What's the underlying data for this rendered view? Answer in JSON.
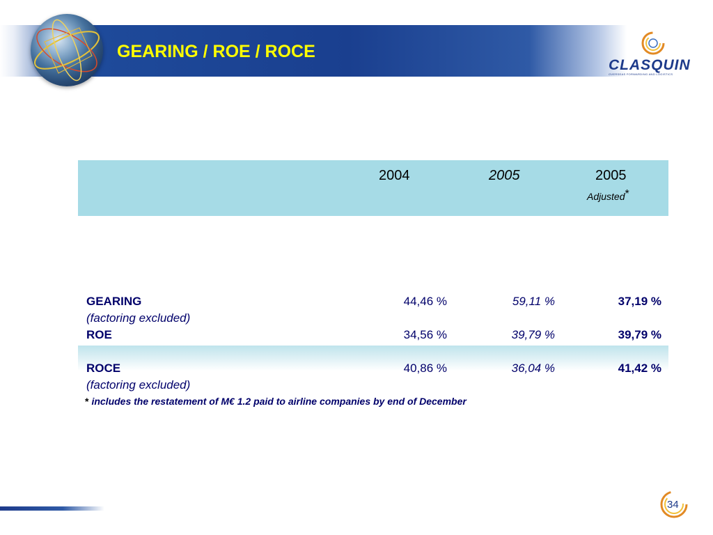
{
  "header": {
    "title": "GEARING / ROE / ROCE"
  },
  "logo": {
    "name": "CLASQUIN",
    "tagline": "OVERSEAS FORWARDING AND LOGISTICS"
  },
  "table": {
    "columns": [
      "2004",
      "2005",
      "2005"
    ],
    "adjusted_label": "Adjusted",
    "adjusted_marker": "*",
    "rows": [
      {
        "label": "GEARING",
        "sub": "(factoring excluded)",
        "values": [
          "44,46 %",
          "59,11 %",
          "37,19 %"
        ]
      },
      {
        "label": "ROE",
        "sub": "",
        "values": [
          "34,56 %",
          "39,79 %",
          "39,79 %"
        ]
      },
      {
        "label": "ROCE",
        "sub": "(factoring excluded)",
        "values": [
          "40,86 %",
          "36,04 %",
          "41,42 %"
        ]
      }
    ]
  },
  "footnote": {
    "marker": "*",
    "text": "includes the restatement of M€ 1.2 paid to airline companies by end of December"
  },
  "page": {
    "number": "34"
  },
  "colors": {
    "banner": "#1a3f8f",
    "title": "#ffff00",
    "table_header": "#a6dbe6",
    "text": "#00006a"
  }
}
